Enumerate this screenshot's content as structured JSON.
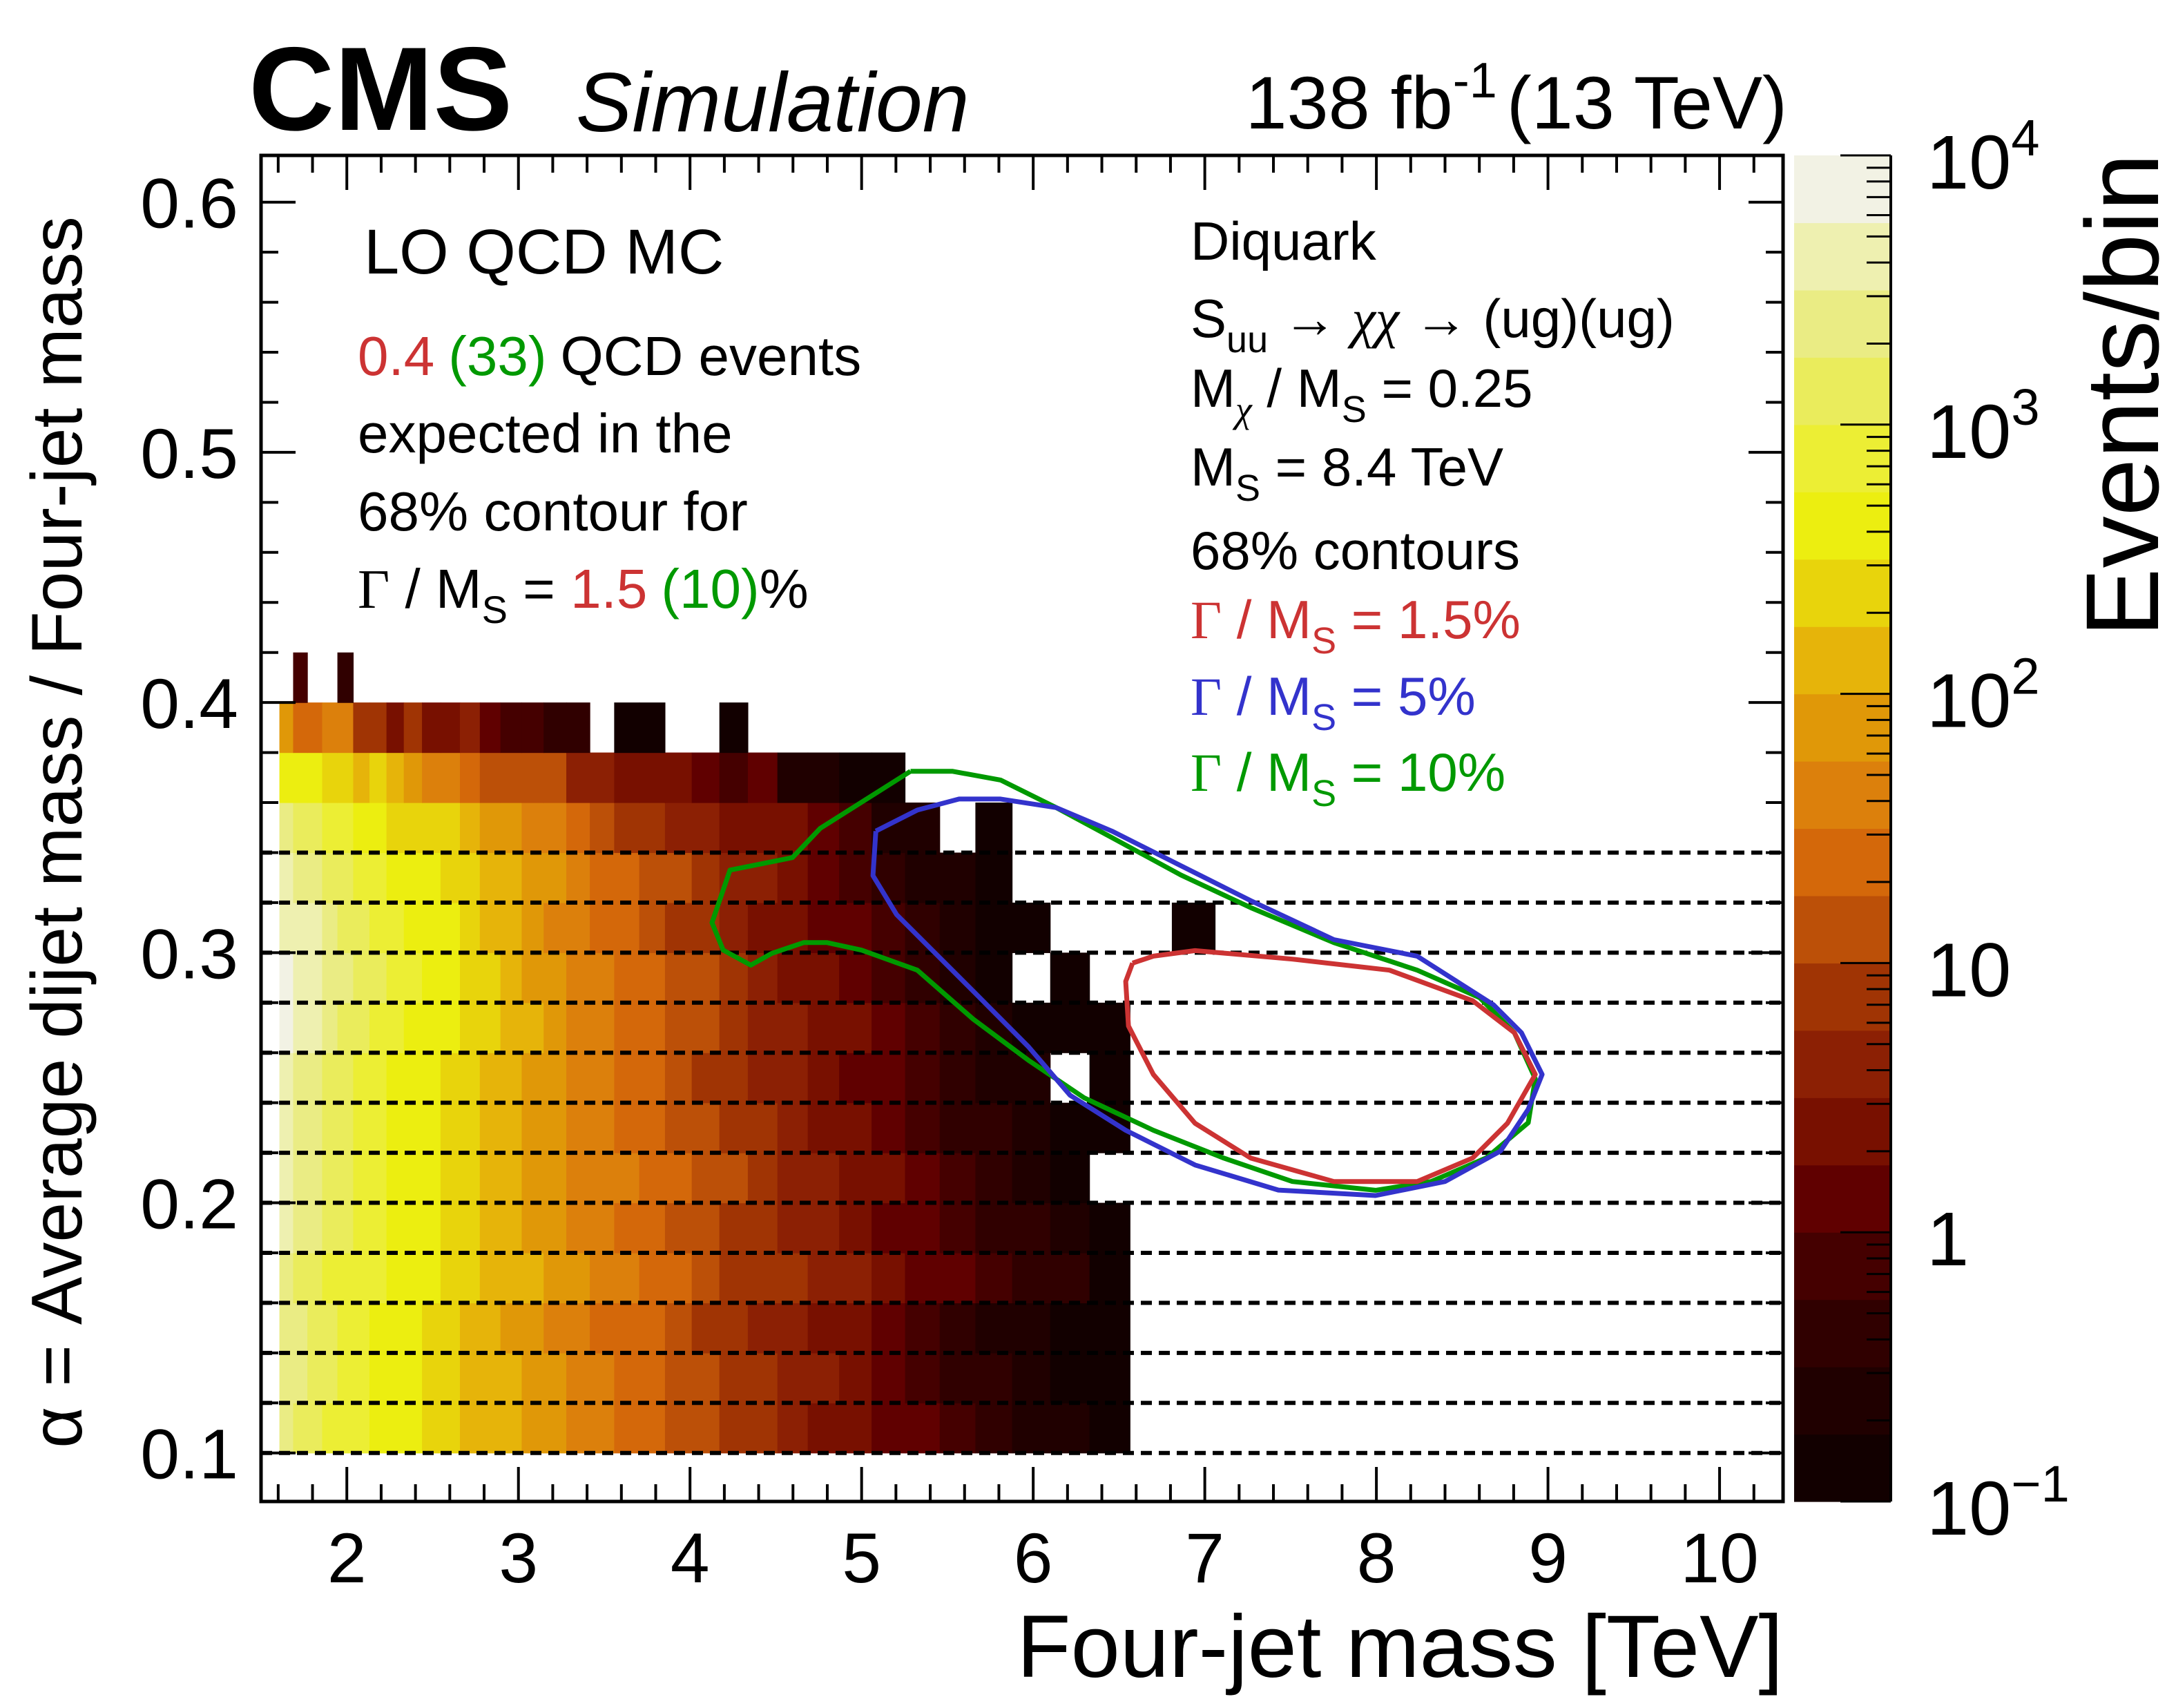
{
  "header": {
    "experiment": "CMS",
    "label": "Simulation",
    "lumi": "138 fb",
    "lumi_exp": "-1",
    "energy": "(13 TeV)"
  },
  "annotations": {
    "left": {
      "title": "LO QCD MC",
      "l1_red": "0.4",
      "l1_green": "(33)",
      "l1_rest": "QCD events",
      "l2": "expected in the",
      "l3": "68% contour for",
      "l4_gamma": "Γ",
      "l4_mid": " / M",
      "l4_sub": "S",
      "l4_eq": " = ",
      "l4_red": "1.5",
      "l4_green": "(10)",
      "l4_pct": "%"
    },
    "right": {
      "l1": "Diquark",
      "l2_s": "S",
      "l2_sub": "uu",
      "l2_rest1": " → ",
      "l2_chi": "χχ",
      "l2_rest2": " → (ug)(ug)",
      "l3_m": "M",
      "l3_sub1": "χ",
      "l3_mid": " / M",
      "l3_sub2": "S",
      "l3_val": " = 0.25",
      "l4_m": "M",
      "l4_sub": "S",
      "l4_val": " = 8.4 TeV",
      "l5": "68% contours",
      "leg": [
        {
          "gamma": "Γ",
          "mid": " / M",
          "sub": "S",
          "val": " = 1.5%"
        },
        {
          "gamma": "Γ",
          "mid": " / M",
          "sub": "S",
          "val": " = 5%"
        },
        {
          "gamma": "Γ",
          "mid": " / M",
          "sub": "S",
          "val": " = 10%"
        }
      ]
    }
  },
  "chart_data": {
    "type": "heatmap",
    "title": "",
    "xlabel": "Four-jet mass [TeV]",
    "ylabel": "α = Average dijet mass / Four-jet mass",
    "zlabel": "Events/bin",
    "xlim": [
      1.5,
      10.37
    ],
    "ylim": [
      0.0806,
      0.6187
    ],
    "zlim": [
      0.1,
      10000
    ],
    "z_log": true,
    "x_ticks": [
      2,
      3,
      4,
      5,
      6,
      7,
      8,
      9,
      10
    ],
    "x_tick_labels": [
      "2",
      "3",
      "4",
      "5",
      "6",
      "7",
      "8",
      "9",
      "10"
    ],
    "y_ticks": [
      0.1,
      0.2,
      0.3,
      0.4,
      0.5,
      0.6
    ],
    "y_tick_labels": [
      "0.1",
      "0.2",
      "0.3",
      "0.4",
      "0.5",
      "0.6"
    ],
    "z_ticks": [
      {
        "value": 10000,
        "base": "10",
        "exp": "4"
      },
      {
        "value": 1000,
        "base": "10",
        "exp": "3"
      },
      {
        "value": 100,
        "base": "10",
        "exp": "2"
      },
      {
        "value": 10,
        "base": "10",
        "exp": ""
      },
      {
        "value": 1,
        "base": "1",
        "exp": ""
      },
      {
        "value": 0.1,
        "base": "10",
        "exp": "−1"
      }
    ],
    "palette": [
      "#120000",
      "#200000",
      "#300000",
      "#450000",
      "#600000",
      "#781000",
      "#8c2004",
      "#a03404",
      "#bc5008",
      "#d4680a",
      "#dc800c",
      "#e09808",
      "#e6b40a",
      "#e8d40c",
      "#ecee10",
      "#ecee34",
      "#eaec5c",
      "#eaec84",
      "#eef0b0",
      "#f2f2e4"
    ],
    "x_edges": [
      1.607,
      1.687,
      1.77,
      1.856,
      1.945,
      2.037,
      2.132,
      2.231,
      2.332,
      2.438,
      2.546,
      2.659,
      2.775,
      2.895,
      3.019,
      3.147,
      3.279,
      3.416,
      3.558,
      3.704,
      3.854,
      4.01,
      4.171,
      4.337,
      4.509,
      4.686,
      4.869,
      5.058,
      5.253,
      5.455,
      5.663,
      5.877,
      6.099,
      6.328,
      6.564,
      6.808,
      7.06
    ],
    "y_edges": [
      0.1,
      0.12,
      0.14,
      0.16,
      0.18,
      0.2,
      0.22,
      0.24,
      0.26,
      0.28,
      0.3,
      0.32,
      0.34,
      0.36,
      0.38,
      0.4,
      0.42
    ],
    "z_level_note": "color level index 0..19 (log scale 0.1–10^4 events/bin, 4 levels per decade); -1 = empty bin",
    "z_level": [
      [
        17,
        16,
        16,
        15,
        15,
        15,
        14,
        14,
        14,
        13,
        13,
        12,
        12,
        12,
        11,
        11,
        10,
        10,
        9,
        9,
        8,
        8,
        7,
        7,
        6,
        5,
        5,
        4,
        4,
        3,
        2,
        1,
        1,
        0,
        -1,
        -1
      ],
      [
        17,
        17,
        16,
        16,
        15,
        15,
        14,
        14,
        14,
        13,
        13,
        12,
        12,
        12,
        11,
        11,
        10,
        10,
        9,
        9,
        8,
        8,
        7,
        7,
        6,
        6,
        5,
        4,
        3,
        2,
        2,
        1,
        0,
        0,
        -1,
        -1
      ],
      [
        17,
        17,
        16,
        16,
        15,
        15,
        14,
        14,
        14,
        13,
        13,
        12,
        12,
        11,
        11,
        10,
        10,
        9,
        9,
        9,
        8,
        7,
        7,
        6,
        6,
        5,
        5,
        4,
        3,
        2,
        1,
        1,
        0,
        0,
        -1,
        -1
      ],
      [
        17,
        16,
        16,
        15,
        15,
        15,
        15,
        14,
        14,
        14,
        13,
        13,
        12,
        12,
        12,
        11,
        11,
        10,
        10,
        9,
        9,
        8,
        7,
        7,
        7,
        6,
        6,
        5,
        4,
        4,
        3,
        2,
        2,
        0,
        -1,
        -1
      ],
      [
        18,
        17,
        17,
        16,
        16,
        15,
        15,
        14,
        14,
        14,
        13,
        13,
        12,
        12,
        11,
        11,
        10,
        10,
        9,
        9,
        8,
        8,
        7,
        7,
        6,
        6,
        5,
        4,
        4,
        3,
        2,
        2,
        1,
        0,
        -1,
        -1
      ],
      [
        18,
        17,
        17,
        16,
        16,
        15,
        15,
        14,
        14,
        14,
        13,
        13,
        12,
        12,
        11,
        11,
        10,
        10,
        10,
        9,
        9,
        8,
        8,
        7,
        6,
        6,
        5,
        5,
        4,
        3,
        2,
        1,
        0,
        -1,
        -1,
        -1
      ],
      [
        18,
        17,
        17,
        16,
        16,
        15,
        15,
        14,
        14,
        14,
        13,
        13,
        12,
        12,
        11,
        11,
        10,
        10,
        9,
        9,
        8,
        8,
        7,
        7,
        6,
        5,
        5,
        4,
        3,
        2,
        2,
        1,
        0,
        0,
        -1,
        -1
      ],
      [
        18,
        17,
        17,
        16,
        16,
        15,
        15,
        14,
        14,
        14,
        13,
        13,
        12,
        12,
        11,
        11,
        10,
        10,
        9,
        9,
        8,
        7,
        7,
        6,
        6,
        5,
        4,
        4,
        3,
        2,
        1,
        1,
        -1,
        0,
        -1,
        -1
      ],
      [
        19,
        18,
        18,
        17,
        16,
        16,
        15,
        15,
        14,
        14,
        14,
        13,
        13,
        12,
        12,
        11,
        10,
        10,
        9,
        9,
        8,
        8,
        7,
        6,
        6,
        5,
        5,
        4,
        3,
        2,
        1,
        0,
        0,
        0,
        -1,
        -1
      ],
      [
        19,
        18,
        18,
        17,
        17,
        16,
        16,
        15,
        15,
        14,
        14,
        13,
        13,
        12,
        11,
        11,
        10,
        10,
        9,
        9,
        8,
        8,
        7,
        6,
        5,
        5,
        4,
        3,
        2,
        1,
        0,
        -1,
        0,
        -1,
        -1,
        -1
      ],
      [
        18,
        18,
        18,
        17,
        16,
        16,
        15,
        15,
        14,
        14,
        14,
        13,
        12,
        12,
        11,
        10,
        10,
        9,
        9,
        8,
        7,
        7,
        6,
        5,
        5,
        4,
        4,
        3,
        2,
        1,
        0,
        0,
        -1,
        -1,
        -1,
        0
      ],
      [
        18,
        17,
        17,
        16,
        16,
        15,
        15,
        14,
        14,
        14,
        13,
        13,
        12,
        12,
        11,
        11,
        10,
        9,
        9,
        8,
        8,
        7,
        6,
        6,
        5,
        4,
        3,
        2,
        1,
        1,
        0,
        -1,
        -1,
        -1,
        -1,
        -1
      ],
      [
        17,
        16,
        16,
        15,
        15,
        14,
        14,
        13,
        13,
        13,
        13,
        12,
        11,
        11,
        10,
        10,
        9,
        8,
        7,
        7,
        6,
        6,
        5,
        5,
        5,
        4,
        3,
        1,
        1,
        -1,
        0,
        -1,
        -1,
        -1,
        -1,
        -1
      ],
      [
        14,
        14,
        14,
        13,
        13,
        12,
        13,
        12,
        11,
        10,
        10,
        9,
        8,
        8,
        8,
        8,
        6,
        6,
        5,
        5,
        5,
        4,
        3,
        4,
        1,
        1,
        0,
        0,
        -1,
        -1,
        -1,
        -1,
        -1,
        -1,
        -1,
        -1
      ],
      [
        11,
        9,
        9,
        10,
        10,
        7,
        7,
        5,
        7,
        5,
        5,
        6,
        4,
        3,
        3,
        2,
        2,
        -1,
        0,
        0,
        -1,
        -1,
        0,
        -1,
        -1,
        -1,
        -1,
        -1,
        -1,
        -1,
        -1,
        -1,
        -1,
        -1,
        -1,
        -1
      ],
      [
        -1,
        3,
        -1,
        -1,
        2,
        -1,
        -1,
        -1,
        -1,
        -1,
        -1,
        -1,
        -1,
        -1,
        -1,
        -1,
        -1,
        -1,
        -1,
        -1,
        -1,
        -1,
        -1,
        -1,
        -1,
        -1,
        -1,
        -1,
        -1,
        -1,
        -1,
        -1,
        -1,
        -1,
        -1,
        -1
      ]
    ],
    "dashed_lines_y": [
      0.1,
      0.12,
      0.14,
      0.16,
      0.18,
      0.2,
      0.22,
      0.24,
      0.26,
      0.28,
      0.3,
      0.32,
      0.34
    ],
    "contours": [
      {
        "name": "Γ / MS = 10%",
        "color": "#009900",
        "points": [
          [
            5.285,
            0.3725
          ],
          [
            4.759,
            0.3497
          ],
          [
            4.597,
            0.338
          ],
          [
            4.233,
            0.333
          ],
          [
            4.128,
            0.312
          ],
          [
            4.193,
            0.301
          ],
          [
            4.354,
            0.295
          ],
          [
            4.476,
            0.2997
          ],
          [
            4.662,
            0.304
          ],
          [
            4.799,
            0.304
          ],
          [
            5.0,
            0.301
          ],
          [
            5.325,
            0.293
          ],
          [
            5.649,
            0.2735
          ],
          [
            5.972,
            0.257
          ],
          [
            6.296,
            0.242
          ],
          [
            6.7,
            0.229
          ],
          [
            7.105,
            0.218
          ],
          [
            7.51,
            0.2085
          ],
          [
            7.995,
            0.205
          ],
          [
            8.319,
            0.2085
          ],
          [
            8.642,
            0.218
          ],
          [
            8.885,
            0.232
          ],
          [
            8.926,
            0.2496
          ],
          [
            8.804,
            0.268
          ],
          [
            8.602,
            0.282
          ],
          [
            8.238,
            0.293
          ],
          [
            7.752,
            0.304
          ],
          [
            7.267,
            0.318
          ],
          [
            6.862,
            0.331
          ],
          [
            6.458,
            0.346
          ],
          [
            6.134,
            0.358
          ],
          [
            5.81,
            0.369
          ],
          [
            5.528,
            0.3725
          ],
          [
            5.285,
            0.3725
          ]
        ]
      },
      {
        "name": "Γ / MS = 5%",
        "color": "#3333cc",
        "points": [
          [
            5.083,
            0.3486
          ],
          [
            5.066,
            0.3308
          ],
          [
            5.204,
            0.3152
          ],
          [
            5.649,
            0.2847
          ],
          [
            5.972,
            0.2624
          ],
          [
            6.215,
            0.243
          ],
          [
            6.539,
            0.229
          ],
          [
            6.943,
            0.2151
          ],
          [
            7.429,
            0.2051
          ],
          [
            7.995,
            0.2029
          ],
          [
            8.4,
            0.2085
          ],
          [
            8.723,
            0.2207
          ],
          [
            8.885,
            0.2374
          ],
          [
            8.966,
            0.2513
          ],
          [
            8.845,
            0.268
          ],
          [
            8.683,
            0.2791
          ],
          [
            8.238,
            0.2986
          ],
          [
            7.752,
            0.3052
          ],
          [
            7.267,
            0.3208
          ],
          [
            6.862,
            0.3347
          ],
          [
            6.458,
            0.3486
          ],
          [
            6.134,
            0.358
          ],
          [
            5.81,
            0.3614
          ],
          [
            5.568,
            0.3614
          ],
          [
            5.325,
            0.357
          ],
          [
            5.083,
            0.3486
          ]
        ]
      },
      {
        "name": "Γ / MS = 1.5%",
        "color": "#cc3333",
        "points": [
          [
            6.579,
            0.2958
          ],
          [
            6.539,
            0.2885
          ],
          [
            6.555,
            0.2707
          ],
          [
            6.7,
            0.2513
          ],
          [
            6.943,
            0.2318
          ],
          [
            7.267,
            0.2179
          ],
          [
            7.752,
            0.2085
          ],
          [
            8.238,
            0.2085
          ],
          [
            8.561,
            0.2179
          ],
          [
            8.764,
            0.2318
          ],
          [
            8.926,
            0.2513
          ],
          [
            8.804,
            0.268
          ],
          [
            8.561,
            0.2808
          ],
          [
            8.076,
            0.293
          ],
          [
            7.51,
            0.2974
          ],
          [
            6.943,
            0.3008
          ],
          [
            6.7,
            0.2986
          ],
          [
            6.579,
            0.2958
          ]
        ]
      }
    ]
  }
}
